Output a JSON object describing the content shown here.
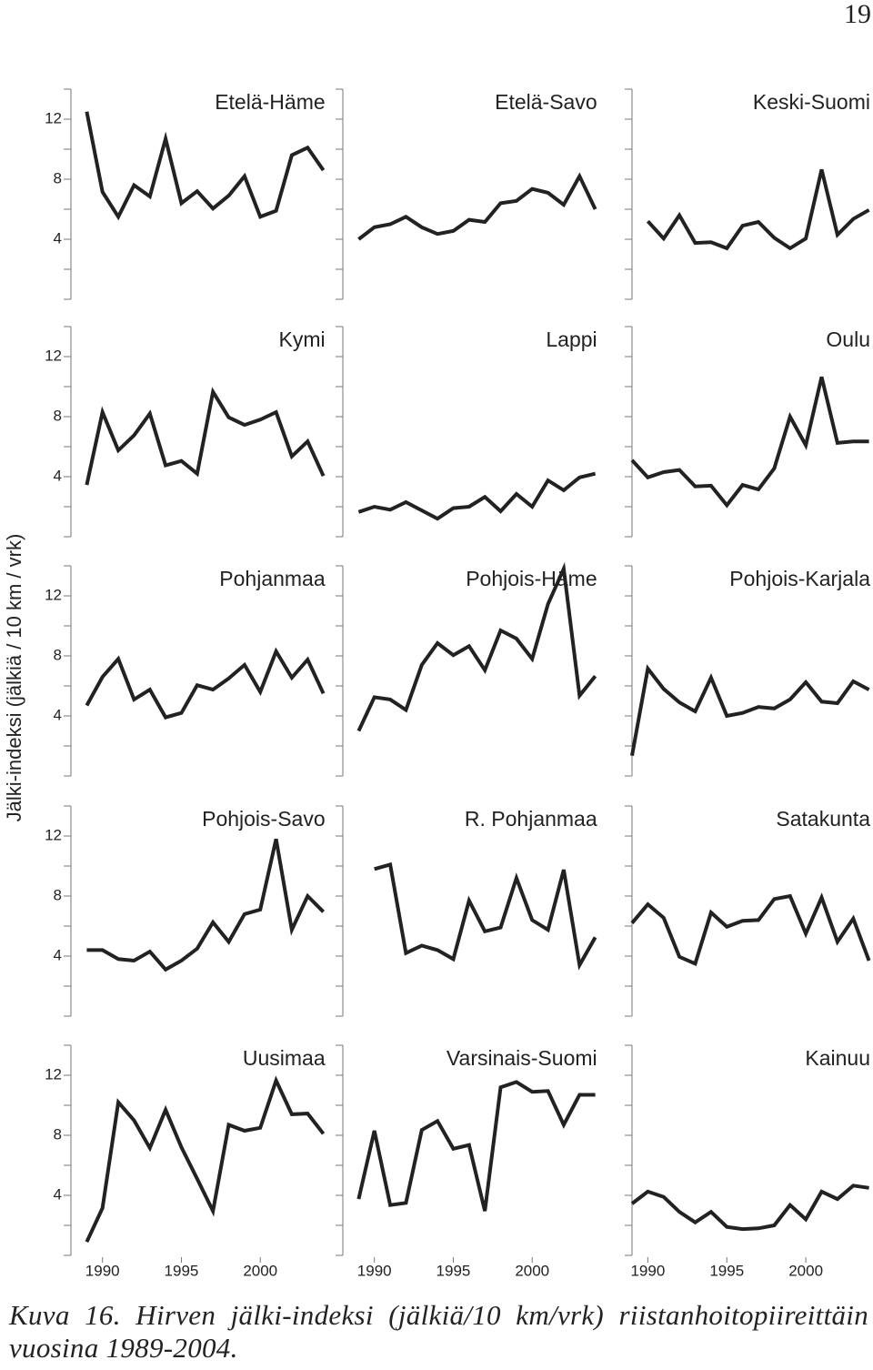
{
  "page_number": "19",
  "y_axis_label": "Jälki-indeksi (jälkiä / 10 km / vrk)",
  "caption": "Kuva 16. Hirven jälki-indeksi (jälkiä/10 km/vrk) riistanhoitopiireittäin vuosina 1989-2004.",
  "chart_data": [
    {
      "type": "line",
      "title": "Etelä-Häme",
      "color": "#222222",
      "xlim": [
        1988,
        2005
      ],
      "ylim": [
        0,
        14
      ],
      "yticks": [
        4,
        8,
        12
      ],
      "x": [
        1989,
        1990,
        1991,
        1992,
        1993,
        1994,
        1995,
        1996,
        1997,
        1998,
        1999,
        2000,
        2001,
        2002,
        2003,
        2004
      ],
      "values": [
        12.5,
        7.15,
        5.5,
        7.6,
        6.85,
        10.7,
        6.4,
        7.2,
        6.05,
        6.9,
        8.2,
        5.5,
        5.9,
        9.6,
        10.1,
        8.6
      ]
    },
    {
      "type": "line",
      "title": "Etelä-Savo",
      "color": "#222222",
      "xlim": [
        1988,
        2005
      ],
      "ylim": [
        0,
        14
      ],
      "yticks": [
        4,
        8,
        12
      ],
      "x": [
        1989,
        1990,
        1991,
        1992,
        1993,
        1994,
        1995,
        1996,
        1997,
        1998,
        1999,
        2000,
        2001,
        2002,
        2003,
        2004
      ],
      "values": [
        4.0,
        4.8,
        5.0,
        5.5,
        4.8,
        4.35,
        4.55,
        5.3,
        5.15,
        6.4,
        6.55,
        7.35,
        7.1,
        6.3,
        8.2,
        6.0
      ]
    },
    {
      "type": "line",
      "title": "Keski-Suomi",
      "color": "#222222",
      "xlim": [
        1989,
        2005
      ],
      "ylim": [
        0,
        14
      ],
      "yticks": [
        4,
        8,
        12
      ],
      "x": [
        1989,
        1990,
        1991,
        1992,
        1993,
        1994,
        1995,
        1996,
        1997,
        1998,
        1999,
        2000,
        2001,
        2002,
        2003,
        2004
      ],
      "values": [
        null,
        5.2,
        4.05,
        5.6,
        3.75,
        3.8,
        3.4,
        4.9,
        5.15,
        4.1,
        3.4,
        4.05,
        8.65,
        4.3,
        5.35,
        5.95
      ]
    },
    {
      "type": "line",
      "title": "Kymi",
      "color": "#222222",
      "xlim": [
        1988,
        2005
      ],
      "ylim": [
        0,
        14
      ],
      "yticks": [
        4,
        8,
        12
      ],
      "x": [
        1989,
        1990,
        1991,
        1992,
        1993,
        1994,
        1995,
        1996,
        1997,
        1998,
        1999,
        2000,
        2001,
        2002,
        2003,
        2004
      ],
      "values": [
        3.45,
        8.3,
        5.75,
        6.75,
        8.2,
        4.75,
        5.05,
        4.2,
        9.65,
        7.95,
        7.45,
        7.8,
        8.3,
        5.35,
        6.35,
        4.05
      ]
    },
    {
      "type": "line",
      "title": "Lappi",
      "color": "#222222",
      "xlim": [
        1988,
        2005
      ],
      "ylim": [
        0,
        14
      ],
      "yticks": [
        4,
        8,
        12
      ],
      "x": [
        1989,
        1990,
        1991,
        1992,
        1993,
        1994,
        1995,
        1996,
        1997,
        1998,
        1999,
        2000,
        2001,
        2002,
        2003,
        2004
      ],
      "values": [
        1.65,
        2.0,
        1.8,
        2.3,
        1.75,
        1.2,
        1.9,
        2.0,
        2.65,
        1.7,
        2.85,
        2.0,
        3.75,
        3.1,
        3.95,
        4.2
      ]
    },
    {
      "type": "line",
      "title": "Oulu",
      "color": "#222222",
      "xlim": [
        1989,
        2005
      ],
      "ylim": [
        0,
        14
      ],
      "yticks": [
        4,
        8,
        12
      ],
      "x": [
        1989,
        1990,
        1991,
        1992,
        1993,
        1994,
        1995,
        1996,
        1997,
        1998,
        1999,
        2000,
        2001,
        2002,
        2003,
        2004
      ],
      "values": [
        5.1,
        3.95,
        4.3,
        4.45,
        3.35,
        3.4,
        2.1,
        3.45,
        3.15,
        4.55,
        8.0,
        6.1,
        10.65,
        6.25,
        6.35,
        6.35
      ]
    },
    {
      "type": "line",
      "title": "Pohjanmaa",
      "color": "#222222",
      "xlim": [
        1988,
        2005
      ],
      "ylim": [
        0,
        14
      ],
      "yticks": [
        4,
        8,
        12
      ],
      "x": [
        1989,
        1990,
        1991,
        1992,
        1993,
        1994,
        1995,
        1996,
        1997,
        1998,
        1999,
        2000,
        2001,
        2002,
        2003,
        2004
      ],
      "values": [
        4.7,
        6.6,
        7.8,
        5.1,
        5.75,
        3.9,
        4.2,
        6.05,
        5.75,
        6.5,
        7.4,
        5.6,
        8.3,
        6.55,
        7.75,
        5.5
      ]
    },
    {
      "type": "line",
      "title": "Pohjois-Häme",
      "color": "#222222",
      "xlim": [
        1988,
        2005
      ],
      "ylim": [
        0,
        14
      ],
      "yticks": [
        4,
        8,
        12
      ],
      "x": [
        1989,
        1990,
        1991,
        1992,
        1993,
        1994,
        1995,
        1996,
        1997,
        1998,
        1999,
        2000,
        2001,
        2002,
        2003,
        2004
      ],
      "values": [
        3.0,
        5.25,
        5.1,
        4.4,
        7.4,
        8.85,
        8.05,
        8.65,
        7.05,
        9.7,
        9.15,
        7.8,
        11.45,
        13.8,
        5.35,
        6.65
      ]
    },
    {
      "type": "line",
      "title": "Pohjois-Karjala",
      "color": "#222222",
      "xlim": [
        1989,
        2005
      ],
      "ylim": [
        0,
        14
      ],
      "yticks": [
        4,
        8,
        12
      ],
      "x": [
        1989,
        1990,
        1991,
        1992,
        1993,
        1994,
        1995,
        1996,
        1997,
        1998,
        1999,
        2000,
        2001,
        2002,
        2003,
        2004
      ],
      "values": [
        1.35,
        7.15,
        5.8,
        4.9,
        4.3,
        6.55,
        4.0,
        4.2,
        4.6,
        4.5,
        5.1,
        6.25,
        4.95,
        4.85,
        6.3,
        5.75
      ]
    },
    {
      "type": "line",
      "title": "Pohjois-Savo",
      "color": "#222222",
      "xlim": [
        1988,
        2005
      ],
      "ylim": [
        0,
        14
      ],
      "yticks": [
        4,
        8,
        12
      ],
      "x": [
        1989,
        1990,
        1991,
        1992,
        1993,
        1994,
        1995,
        1996,
        1997,
        1998,
        1999,
        2000,
        2001,
        2002,
        2003,
        2004
      ],
      "values": [
        4.4,
        4.4,
        3.8,
        3.7,
        4.3,
        3.1,
        3.7,
        4.5,
        6.25,
        4.95,
        6.8,
        7.1,
        11.8,
        5.75,
        8.0,
        6.95
      ]
    },
    {
      "type": "line",
      "title": "R. Pohjanmaa",
      "color": "#222222",
      "xlim": [
        1988,
        2005
      ],
      "ylim": [
        0,
        14
      ],
      "yticks": [
        4,
        8,
        12
      ],
      "x": [
        1989,
        1990,
        1991,
        1992,
        1993,
        1994,
        1995,
        1996,
        1997,
        1998,
        1999,
        2000,
        2001,
        2002,
        2003,
        2004
      ],
      "values": [
        null,
        9.8,
        10.1,
        4.2,
        4.7,
        4.4,
        3.8,
        7.7,
        5.65,
        5.9,
        9.2,
        6.4,
        5.75,
        9.75,
        3.4,
        5.25
      ]
    },
    {
      "type": "line",
      "title": "Satakunta",
      "color": "#222222",
      "xlim": [
        1989,
        2005
      ],
      "ylim": [
        0,
        14
      ],
      "yticks": [
        4,
        8,
        12
      ],
      "x": [
        1989,
        1990,
        1991,
        1992,
        1993,
        1994,
        1995,
        1996,
        1997,
        1998,
        1999,
        2000,
        2001,
        2002,
        2003,
        2004
      ],
      "values": [
        6.2,
        7.45,
        6.55,
        3.95,
        3.5,
        6.9,
        5.95,
        6.35,
        6.4,
        7.8,
        8.0,
        5.5,
        7.9,
        4.95,
        6.5,
        3.7
      ]
    },
    {
      "type": "line",
      "title": "Uusimaa",
      "color": "#222222",
      "xlim": [
        1988,
        2005
      ],
      "ylim": [
        0,
        14
      ],
      "yticks": [
        4,
        8,
        12
      ],
      "xticks": [
        1990,
        1995,
        2000
      ],
      "x": [
        1989,
        1990,
        1991,
        1992,
        1993,
        1994,
        1995,
        1996,
        1997,
        1998,
        1999,
        2000,
        2001,
        2002,
        2003,
        2004
      ],
      "values": [
        0.9,
        3.15,
        10.2,
        9.0,
        7.15,
        9.7,
        7.2,
        5.1,
        2.95,
        8.7,
        8.3,
        8.5,
        11.65,
        9.4,
        9.45,
        8.1
      ]
    },
    {
      "type": "line",
      "title": "Varsinais-Suomi",
      "color": "#222222",
      "xlim": [
        1988,
        2005
      ],
      "ylim": [
        0,
        14
      ],
      "yticks": [
        4,
        8,
        12
      ],
      "xticks": [
        1990,
        1995,
        2000
      ],
      "x": [
        1989,
        1990,
        1991,
        1992,
        1993,
        1994,
        1995,
        1996,
        1997,
        1998,
        1999,
        2000,
        2001,
        2002,
        2003,
        2004
      ],
      "values": [
        3.75,
        8.3,
        3.35,
        3.5,
        8.35,
        8.95,
        7.1,
        7.35,
        2.95,
        11.2,
        11.55,
        10.9,
        10.95,
        8.7,
        10.7,
        10.7
      ]
    },
    {
      "type": "line",
      "title": "Kainuu",
      "color": "#222222",
      "xlim": [
        1989,
        2005
      ],
      "ylim": [
        0,
        14
      ],
      "yticks": [
        4,
        8,
        12
      ],
      "xticks": [
        1990,
        1995,
        2000
      ],
      "x": [
        1989,
        1990,
        1991,
        1992,
        1993,
        1994,
        1995,
        1996,
        1997,
        1998,
        1999,
        2000,
        2001,
        2002,
        2003,
        2004
      ],
      "values": [
        3.45,
        4.25,
        3.9,
        2.9,
        2.2,
        2.9,
        1.9,
        1.75,
        1.8,
        2.0,
        3.35,
        2.4,
        4.25,
        3.75,
        4.65,
        4.5
      ]
    }
  ]
}
